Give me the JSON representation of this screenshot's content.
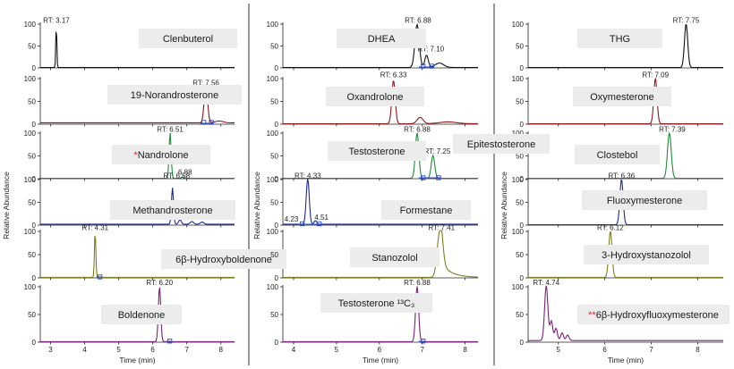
{
  "palette": {
    "black": "#111111",
    "darkred": "#8c1a1a",
    "green": "#1f8a3a",
    "navy": "#1f2a8c",
    "olive": "#7d7d1e",
    "purple": "#7a1f7a",
    "blue": "#2a4cc8",
    "label_box": "#ececec",
    "star": "#e0212b"
  },
  "chart_data": [
    {
      "type": "line",
      "column": 0,
      "x_ticks": [
        "3",
        "4",
        "5",
        "6",
        "7",
        "8"
      ],
      "xlim": [
        2.7,
        8.4
      ],
      "xlabel": "Time (min)",
      "ylabel": "Relative Abundance",
      "panels": [
        {
          "name": "Clenbuterol",
          "color": "black",
          "rt_label": "RT: 3.17",
          "peaks": [
            {
              "x": 3.17,
              "h": 100,
              "w": 0.015
            }
          ],
          "baseline": 1,
          "rt_pos": [
            3.17,
            103
          ]
        },
        {
          "name": "19-Norandrosterone",
          "color": "darkred",
          "rt_label": "RT: 7.56",
          "peaks": [
            {
              "x": 7.56,
              "h": 82,
              "w": 0.05
            }
          ],
          "baseline": 3,
          "rt_pos": [
            7.56,
            85
          ],
          "markers": [
            {
              "x": 7.5,
              "y": 4
            },
            {
              "x": 7.72,
              "y": 4
            }
          ],
          "bumps": [
            {
              "x": 7.95,
              "h": 4,
              "w": 0.12
            }
          ]
        },
        {
          "name": "Nandrolone",
          "prefix": "*",
          "color": "green",
          "rt_label": "RT: 6.51",
          "peaks": [
            {
              "x": 6.51,
              "h": 100,
              "w": 0.03
            },
            {
              "x": 6.88,
              "h": 3,
              "w": 0.04
            }
          ],
          "baseline": 1,
          "rt_pos": [
            6.51,
            103
          ],
          "extra_labels": [
            {
              "text": "6.88",
              "x": 6.95,
              "y": 9
            }
          ]
        },
        {
          "name": "Methandrosterone",
          "color": "navy",
          "rt_label": "RT: 6.58",
          "peaks": [
            {
              "x": 6.58,
              "h": 80,
              "w": 0.03
            }
          ],
          "baseline": 2,
          "rt_pos": [
            6.7,
            103
          ],
          "bumps": [
            {
              "x": 6.8,
              "h": 10,
              "w": 0.04
            },
            {
              "x": 7.15,
              "h": 6,
              "w": 0.05
            },
            {
              "x": 7.45,
              "h": 5,
              "w": 0.05
            }
          ]
        },
        {
          "name": "6β-Hydroxyboldenone",
          "color": "olive",
          "rt_label": "RT: 4.31",
          "peaks": [
            {
              "x": 4.31,
              "h": 100,
              "w": 0.02
            }
          ],
          "baseline": 1,
          "rt_pos": [
            4.31,
            103
          ],
          "markers": [
            {
              "x": 4.45,
              "y": 2
            }
          ]
        },
        {
          "name": "Boldenone",
          "color": "purple",
          "rt_label": "RT: 6.20",
          "peaks": [
            {
              "x": 6.2,
              "h": 100,
              "w": 0.035
            }
          ],
          "baseline": 1,
          "rt_pos": [
            6.2,
            103
          ],
          "markers": [
            {
              "x": 6.5,
              "y": 2
            }
          ]
        }
      ]
    },
    {
      "type": "line",
      "column": 1,
      "x_ticks": [
        "4",
        "5",
        "6",
        "7",
        "8"
      ],
      "xlim": [
        3.75,
        8.3
      ],
      "xlabel": "Time (min)",
      "ylabel": "Relative Abundance",
      "panels": [
        {
          "name": "DHEA",
          "color": "black",
          "rt_label": "RT: 6.88",
          "peaks": [
            {
              "x": 6.88,
              "h": 98,
              "w": 0.05
            },
            {
              "x": 7.1,
              "h": 28,
              "w": 0.04
            }
          ],
          "baseline": 1,
          "rt_pos": [
            6.9,
            103
          ],
          "extra_labels": [
            {
              "text": "RT: 7.10",
              "x": 7.2,
              "y": 38
            }
          ],
          "markers": [
            {
              "x": 7.02,
              "y": 4
            },
            {
              "x": 7.22,
              "y": 4
            }
          ],
          "bumps": [
            {
              "x": 7.4,
              "h": 10,
              "w": 0.1
            }
          ]
        },
        {
          "name": "Oxandrolone",
          "color": "darkred",
          "rt_label": "RT: 6.33",
          "peaks": [
            {
              "x": 6.33,
              "h": 95,
              "w": 0.04
            },
            {
              "x": 6.95,
              "h": 14,
              "w": 0.07
            }
          ],
          "baseline": 1,
          "rt_pos": [
            6.33,
            103
          ],
          "bumps": [
            {
              "x": 7.6,
              "h": 4,
              "w": 0.2
            }
          ]
        },
        {
          "name": "Testosterone",
          "color": "green",
          "rt_label": "RT: 6.88",
          "peaks": [
            {
              "x": 6.88,
              "h": 100,
              "w": 0.04
            },
            {
              "x": 7.25,
              "h": 50,
              "w": 0.04
            }
          ],
          "baseline": 1,
          "rt_pos": [
            6.88,
            103
          ],
          "extra_labels": [
            {
              "text": "RT: 7.25",
              "x": 7.35,
              "y": 55
            }
          ],
          "markers": [
            {
              "x": 7.02,
              "y": 2
            },
            {
              "x": 7.38,
              "y": 2
            }
          ]
        },
        {
          "name": "Formestane",
          "color": "navy",
          "rt_label": "RT: 4.33",
          "peaks": [
            {
              "x": 4.33,
              "h": 100,
              "w": 0.035
            },
            {
              "x": 4.51,
              "h": 8,
              "w": 0.03
            }
          ],
          "baseline": 2,
          "rt_pos": [
            4.33,
            103
          ],
          "extra_labels": [
            {
              "text": "4.23",
              "x": 3.95,
              "y": 8
            },
            {
              "text": "4.51",
              "x": 4.65,
              "y": 12
            }
          ],
          "markers": [
            {
              "x": 4.2,
              "y": 3
            },
            {
              "x": 4.6,
              "y": 3
            }
          ]
        },
        {
          "name": "Stanozolol",
          "color": "olive",
          "rt_label": "RT: 7.41",
          "peaks": [
            {
              "x": 7.41,
              "h": 100,
              "w": 0.06
            }
          ],
          "baseline": 1,
          "rt_pos": [
            7.45,
            103
          ],
          "tail": {
            "x": 7.41,
            "h": 100,
            "len": 0.7
          }
        },
        {
          "name": "Testosterone ¹³C₃",
          "color": "purple",
          "rt_label": "RT: 6.88",
          "peaks": [
            {
              "x": 6.88,
              "h": 100,
              "w": 0.035
            }
          ],
          "baseline": 1,
          "rt_pos": [
            6.88,
            103
          ],
          "markers": [
            {
              "x": 7.02,
              "y": 2
            }
          ]
        }
      ]
    },
    {
      "type": "line",
      "column": 2,
      "x_ticks": [
        "5",
        "6",
        "7",
        "8"
      ],
      "xlim": [
        4.35,
        8.55
      ],
      "xlabel": "Time (min)",
      "ylabel": "Relative Abundance",
      "panels": [
        {
          "name": "THG",
          "color": "black",
          "rt_label": "RT: 7.75",
          "peaks": [
            {
              "x": 7.75,
              "h": 100,
              "w": 0.035
            }
          ],
          "baseline": 1,
          "rt_pos": [
            7.75,
            103
          ]
        },
        {
          "name": "Oxymesterone",
          "color": "darkred",
          "rt_label": "RT: 7.09",
          "peaks": [
            {
              "x": 7.09,
              "h": 100,
              "w": 0.035
            }
          ],
          "baseline": 1,
          "rt_pos": [
            7.09,
            103
          ]
        },
        {
          "name": "Clostebol",
          "color": "green",
          "rt_label": "RT: 7.39",
          "peaks": [
            {
              "x": 7.39,
              "h": 100,
              "w": 0.04
            }
          ],
          "baseline": 1,
          "rt_pos": [
            7.45,
            103
          ]
        },
        {
          "name": "Fluoxymesterone",
          "color": "navy",
          "rt_label": "RT: 6.36",
          "peaks": [
            {
              "x": 6.36,
              "h": 100,
              "w": 0.035
            }
          ],
          "baseline": 1,
          "rt_pos": [
            6.36,
            103
          ]
        },
        {
          "name": "3-Hydroxystanozolol",
          "color": "olive",
          "rt_label": "RT: 6.12",
          "peaks": [
            {
              "x": 6.12,
              "h": 100,
              "w": 0.035
            }
          ],
          "baseline": 1,
          "rt_pos": [
            6.12,
            103
          ]
        },
        {
          "name": "6β-Hydroxyfluoxymesterone",
          "prefix": "**",
          "color": "purple",
          "rt_label": "RT: 4.74",
          "peaks": [
            {
              "x": 4.74,
              "h": 100,
              "w": 0.035
            },
            {
              "x": 4.85,
              "h": 35,
              "w": 0.03
            },
            {
              "x": 4.95,
              "h": 22,
              "w": 0.03
            },
            {
              "x": 5.08,
              "h": 14,
              "w": 0.03
            },
            {
              "x": 5.2,
              "h": 10,
              "w": 0.03
            }
          ],
          "baseline": 3,
          "rt_pos": [
            4.74,
            103
          ]
        }
      ]
    }
  ],
  "annotation": {
    "text": "Epitestosterone"
  }
}
